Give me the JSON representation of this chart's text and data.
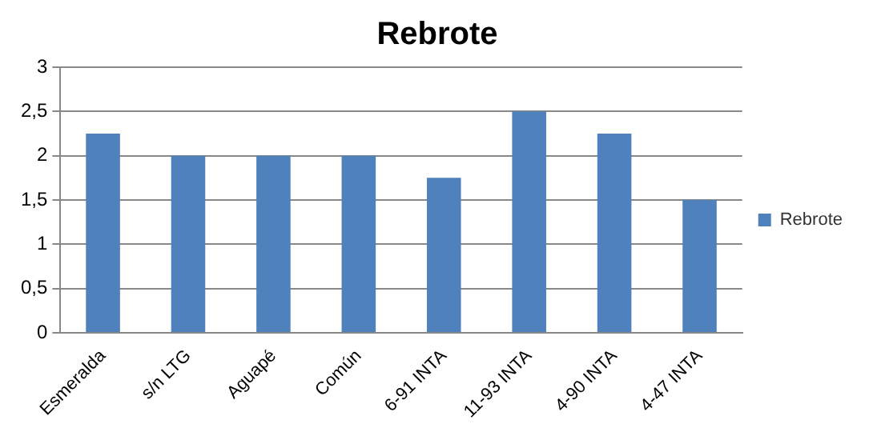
{
  "chart_data": {
    "type": "bar",
    "title": "Rebrote",
    "categories": [
      "Esmeralda",
      "s/n LTG",
      "Aguapé",
      "Común",
      "6-91 INTA",
      "11-93 INTA",
      "4-90 INTA",
      "4-47 INTA"
    ],
    "series": [
      {
        "name": "Rebrote",
        "color": "#4f81bd",
        "values": [
          2.25,
          2,
          2,
          2,
          1.75,
          2.5,
          2.25,
          1.5
        ]
      }
    ],
    "ylim": [
      0,
      3
    ],
    "yticks": [
      0,
      {
        "value": 0.5,
        "label": "0,5"
      },
      1,
      {
        "value": 1.5,
        "label": "1,5"
      },
      2,
      {
        "value": 2.5,
        "label": "2,5"
      },
      3
    ],
    "grid": "y",
    "legend": "right"
  }
}
